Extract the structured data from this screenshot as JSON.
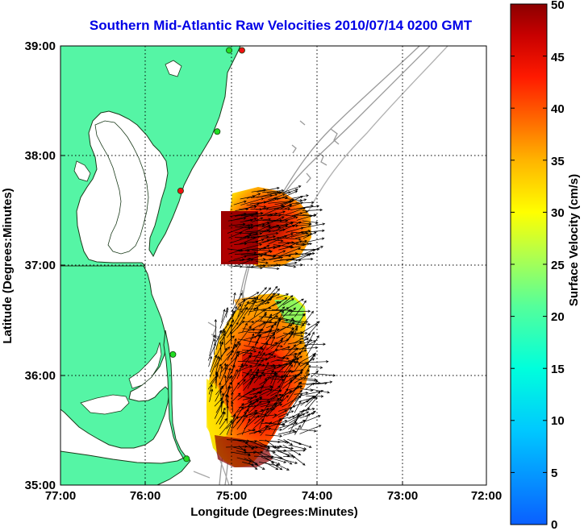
{
  "title": "Southern Mid-Atlantic Raw Velocities 2010/07/14 0200 GMT",
  "x_axis": {
    "label": "Longitude (Degrees:Minutes)",
    "ticks": [
      "77:00",
      "76:00",
      "75:00",
      "74:00",
      "73:00",
      "72:00"
    ]
  },
  "y_axis": {
    "label": "Latitude (Degrees:Minutes)",
    "ticks": [
      "39:00",
      "38:00",
      "37:00",
      "36:00",
      "35:00"
    ]
  },
  "colorbar": {
    "label": "Surface Velocity (cm/s)",
    "ticks": [
      "50",
      "45",
      "40",
      "35",
      "30",
      "25",
      "20",
      "15",
      "10",
      "5",
      "0"
    ],
    "min": 0,
    "max": 50,
    "colormap": "jet"
  },
  "colors": {
    "land": "#55f5a5",
    "title": "#0000e6",
    "bathymetry": "#9a9a9a",
    "station_green": "#22dd22",
    "station_red": "#ee1111"
  },
  "map_extent": {
    "lon_west": -77,
    "lon_east": -72,
    "lat_south": 35,
    "lat_north": 39
  },
  "stations": [
    {
      "lon": -74.87,
      "lat": 38.96,
      "color": "red"
    },
    {
      "lon": -75.02,
      "lat": 38.96,
      "color": "green"
    },
    {
      "lon": -75.16,
      "lat": 38.22,
      "color": "green"
    },
    {
      "lon": -75.59,
      "lat": 37.68,
      "color": "red"
    },
    {
      "lon": -75.68,
      "lat": 36.19,
      "color": "green"
    },
    {
      "lon": -75.52,
      "lat": 35.24,
      "color": "green"
    }
  ]
}
